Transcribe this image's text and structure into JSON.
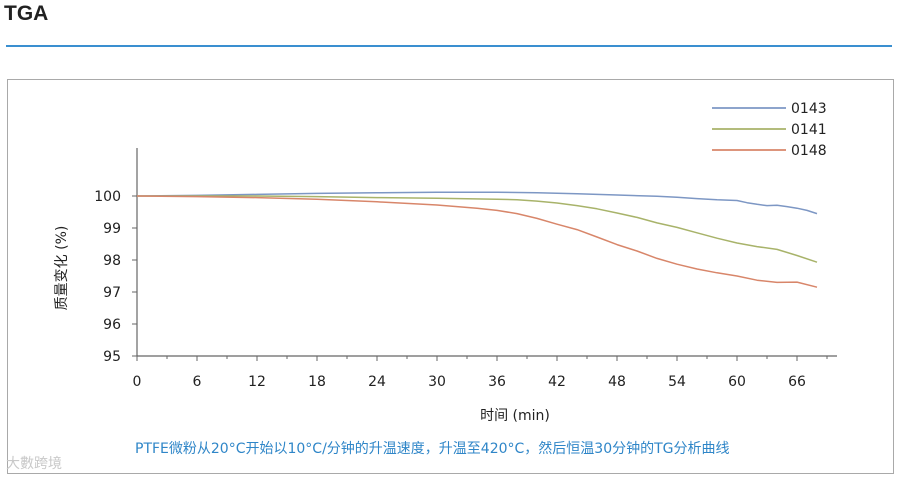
{
  "page": {
    "heading": "TGA",
    "caption": "PTFE微粉从20°C开始以10°C/分钟的升温速度，升温至420°C，然后恒温30分钟的TG分析曲线",
    "watermark": "大數跨境"
  },
  "chart_data": {
    "type": "line",
    "xlabel": "时间 (min)",
    "ylabel": "质量变化 (%)",
    "xlim": [
      0,
      70
    ],
    "ylim": [
      95,
      101.5
    ],
    "xticks": [
      "0",
      "6",
      "12",
      "18",
      "24",
      "30",
      "36",
      "42",
      "48",
      "54",
      "60",
      "66"
    ],
    "yticks": [
      "95",
      "96",
      "97",
      "98",
      "99",
      "100"
    ],
    "grid": false,
    "legend_position": "top-right",
    "series": [
      {
        "name": "0143",
        "color": "#7d97c4",
        "x": [
          0,
          6,
          12,
          18,
          24,
          30,
          36,
          40,
          44,
          48,
          52,
          54,
          56,
          58,
          60,
          61,
          62,
          63,
          64,
          65,
          66,
          67,
          68
        ],
        "y": [
          100.0,
          100.02,
          100.05,
          100.08,
          100.1,
          100.12,
          100.12,
          100.1,
          100.07,
          100.03,
          99.99,
          99.96,
          99.92,
          99.88,
          99.86,
          99.79,
          99.74,
          99.7,
          99.71,
          99.67,
          99.62,
          99.55,
          99.45
        ]
      },
      {
        "name": "0141",
        "color": "#a8b36a",
        "x": [
          0,
          6,
          12,
          18,
          24,
          30,
          36,
          38,
          40,
          42,
          44,
          46,
          48,
          50,
          52,
          54,
          56,
          58,
          60,
          62,
          64,
          66,
          68
        ],
        "y": [
          100.0,
          100.0,
          100.0,
          99.98,
          99.95,
          99.93,
          99.9,
          99.88,
          99.84,
          99.78,
          99.7,
          99.6,
          99.47,
          99.33,
          99.16,
          99.02,
          98.85,
          98.68,
          98.53,
          98.42,
          98.33,
          98.14,
          97.93
        ]
      },
      {
        "name": "0148",
        "color": "#d8866a",
        "x": [
          0,
          6,
          12,
          18,
          24,
          30,
          34,
          36,
          38,
          40,
          42,
          44,
          46,
          48,
          50,
          52,
          54,
          56,
          58,
          60,
          62,
          64,
          66,
          68
        ],
        "y": [
          100.0,
          99.98,
          99.95,
          99.9,
          99.82,
          99.72,
          99.62,
          99.55,
          99.45,
          99.3,
          99.12,
          98.95,
          98.72,
          98.48,
          98.28,
          98.05,
          97.87,
          97.72,
          97.6,
          97.5,
          97.37,
          97.3,
          97.31,
          97.15
        ]
      }
    ]
  }
}
